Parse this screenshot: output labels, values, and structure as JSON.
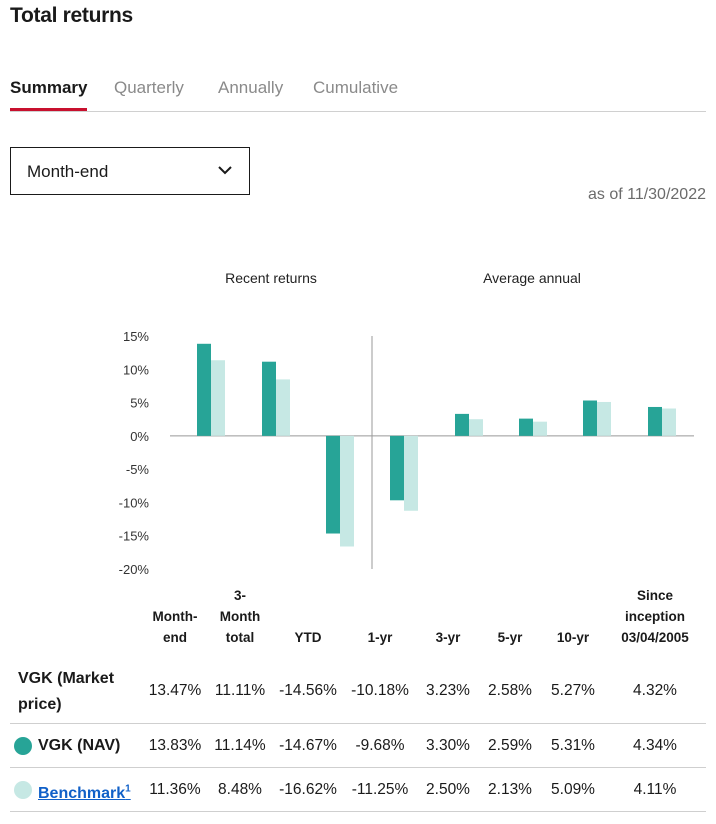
{
  "title": "Total returns",
  "tabs": [
    {
      "label": "Summary",
      "active": true
    },
    {
      "label": "Quarterly",
      "active": false
    },
    {
      "label": "Annually",
      "active": false
    },
    {
      "label": "Cumulative",
      "active": false
    }
  ],
  "period_select": {
    "value": "Month-end",
    "icon": "chevron-down-icon"
  },
  "as_of": "as of 11/30/2022",
  "colors": {
    "nav": "#27a497",
    "benchmark": "#c6e8e4",
    "accent_tab": "#c8102e"
  },
  "chart_data": {
    "type": "bar",
    "group_labels": [
      "Recent returns",
      "Average annual"
    ],
    "categories": [
      "Month-end",
      "3-Month total",
      "YTD",
      "1-yr",
      "3-yr",
      "5-yr",
      "10-yr",
      "Since inception 03/04/2005"
    ],
    "series": [
      {
        "name": "VGK (NAV)",
        "values": [
          13.83,
          11.14,
          -14.67,
          -9.68,
          3.3,
          2.59,
          5.31,
          4.34
        ]
      },
      {
        "name": "Benchmark",
        "values": [
          11.36,
          8.48,
          -16.62,
          -11.25,
          2.5,
          2.13,
          5.09,
          4.11
        ]
      }
    ],
    "yticks": [
      "15%",
      "10%",
      "5%",
      "0%",
      "-5%",
      "-10%",
      "-15%",
      "-20%"
    ],
    "ylim": [
      -20,
      15
    ]
  },
  "table": {
    "columns": [
      [
        "Month-",
        "end"
      ],
      [
        "3-",
        "Month",
        "total"
      ],
      [
        "YTD"
      ],
      [
        "1-yr"
      ],
      [
        "3-yr"
      ],
      [
        "5-yr"
      ],
      [
        "10-yr"
      ],
      [
        "Since",
        "inception",
        "03/04/2005"
      ]
    ],
    "rows": [
      {
        "name_line1": "VGK (Market",
        "name_line2": "price)",
        "values": [
          "13.47%",
          "11.11%",
          "-14.56%",
          "-10.18%",
          "3.23%",
          "2.58%",
          "5.27%",
          "4.32%"
        ]
      },
      {
        "name": "VGK (NAV)",
        "values": [
          "13.83%",
          "11.14%",
          "-14.67%",
          "-9.68%",
          "3.30%",
          "2.59%",
          "5.31%",
          "4.34%"
        ]
      },
      {
        "name": "Benchmark",
        "footnote": "1",
        "values": [
          "11.36%",
          "8.48%",
          "-16.62%",
          "-11.25%",
          "2.50%",
          "2.13%",
          "5.09%",
          "4.11%"
        ]
      }
    ]
  }
}
